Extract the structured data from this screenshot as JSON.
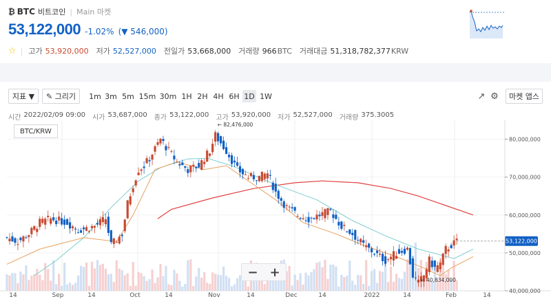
{
  "header": {
    "coin_icon": "₿",
    "ticker": "BTC",
    "name": "비트코인",
    "market": "Main 마켓",
    "price": "53,122,000",
    "change_pct": "-1.02%",
    "change_amt": "▼ 546,000",
    "stats": {
      "high_label": "고가",
      "high_value": "53,920,000",
      "low_label": "저가",
      "low_value": "52,527,000",
      "prev_label": "전일가",
      "prev_value": "53,668,000",
      "volume_label": "거래량",
      "volume_value": "966",
      "volume_unit": "BTC",
      "amount_label": "거래대금",
      "amount_value": "51,318,782,377",
      "amount_unit": "KRW"
    }
  },
  "toolbar": {
    "indicator_label": "지표 ▼",
    "draw_label": "✎ 그리기",
    "timeframes": [
      "1m",
      "3m",
      "5m",
      "15m",
      "30m",
      "1H",
      "2H",
      "4H",
      "6H",
      "1D",
      "1W"
    ],
    "active_timeframe": "1D",
    "market_label": "마켓 앱스"
  },
  "ohlc": {
    "time_label": "시간",
    "time_value": "2022/02/09 09:00",
    "open_label": "시가",
    "open_value": "53,687,000",
    "close_label": "종가",
    "close_value": "53,122,000",
    "high_label": "고가",
    "high_value": "53,920,000",
    "low_label": "저가",
    "low_value": "52,527,000",
    "vol_label": "거래량",
    "vol_value": "375.3005"
  },
  "chart_data": {
    "type": "line",
    "pair": "BTC/KRW",
    "x_ticks": [
      "14",
      "Sep",
      "14",
      "Oct",
      "14",
      "Nov",
      "14",
      "Dec",
      "14",
      "2022",
      "14",
      "Feb",
      "14"
    ],
    "y_ticks": [
      "80,000,000",
      "70,000,000",
      "60,000,000",
      "50,000,000",
      "40,000,000"
    ],
    "ylim": [
      40000000,
      85000000
    ],
    "current_price": "53,122,000",
    "max_label": "← 82,476,000",
    "min_label": "← 40,834,000",
    "colors": {
      "up": "#c84a31",
      "down": "#1261c4",
      "ma_short": "#e8a060",
      "ma_mid": "#7ecdd0",
      "ma_long": "#e04040"
    },
    "ma_long": [
      [
        55,
        59
      ],
      [
        60,
        61.5
      ],
      [
        75,
        64.5
      ],
      [
        90,
        67
      ],
      [
        105,
        68.5
      ],
      [
        115,
        69
      ],
      [
        128,
        68.5
      ],
      [
        140,
        67
      ],
      [
        150,
        65
      ],
      [
        160,
        62.5
      ],
      [
        170,
        60
      ]
    ],
    "ma_mid": [
      [
        10,
        44
      ],
      [
        18,
        48
      ],
      [
        28,
        54
      ],
      [
        38,
        62
      ],
      [
        48,
        69
      ],
      [
        56,
        72.5
      ],
      [
        66,
        74.8
      ],
      [
        73,
        75
      ],
      [
        82,
        73
      ],
      [
        98,
        68
      ],
      [
        113,
        64
      ],
      [
        126,
        58.5
      ],
      [
        138,
        54.5
      ],
      [
        150,
        51
      ],
      [
        163,
        48.5
      ],
      [
        170,
        51
      ]
    ],
    "ma_short": [
      [
        0,
        47
      ],
      [
        12,
        51
      ],
      [
        28,
        54
      ],
      [
        40,
        53
      ],
      [
        46,
        60
      ],
      [
        54,
        72
      ],
      [
        62,
        74
      ],
      [
        72,
        72
      ],
      [
        80,
        73
      ],
      [
        86,
        70
      ],
      [
        98,
        64
      ],
      [
        108,
        58
      ],
      [
        120,
        55
      ],
      [
        130,
        52
      ],
      [
        142,
        49
      ],
      [
        152,
        46
      ],
      [
        158,
        44
      ],
      [
        162,
        46
      ],
      [
        170,
        49
      ]
    ],
    "closes": [
      [
        0,
        54
      ],
      [
        4,
        53
      ],
      [
        8,
        55
      ],
      [
        12,
        58
      ],
      [
        16,
        59
      ],
      [
        22,
        58
      ],
      [
        26,
        56
      ],
      [
        32,
        57
      ],
      [
        36,
        59
      ],
      [
        38,
        52
      ],
      [
        42,
        55
      ],
      [
        44,
        63
      ],
      [
        46,
        68
      ],
      [
        48,
        72
      ],
      [
        50,
        73
      ],
      [
        52,
        75
      ],
      [
        56,
        80
      ],
      [
        58,
        78
      ],
      [
        62,
        74
      ],
      [
        66,
        72
      ],
      [
        70,
        73
      ],
      [
        74,
        77
      ],
      [
        76,
        81
      ],
      [
        80,
        77
      ],
      [
        84,
        72
      ],
      [
        88,
        70
      ],
      [
        92,
        70
      ],
      [
        95,
        71
      ],
      [
        98,
        66
      ],
      [
        102,
        62
      ],
      [
        106,
        60
      ],
      [
        110,
        59
      ],
      [
        114,
        60
      ],
      [
        118,
        61
      ],
      [
        122,
        57
      ],
      [
        126,
        55
      ],
      [
        130,
        52
      ],
      [
        134,
        50
      ],
      [
        138,
        48
      ],
      [
        142,
        50
      ],
      [
        146,
        51
      ],
      [
        148,
        44
      ],
      [
        150,
        42
      ],
      [
        152,
        44
      ],
      [
        154,
        48
      ],
      [
        156,
        46
      ],
      [
        158,
        47
      ],
      [
        160,
        51
      ],
      [
        162,
        52
      ],
      [
        164,
        53
      ]
    ]
  }
}
